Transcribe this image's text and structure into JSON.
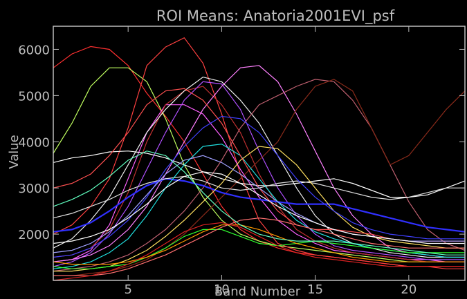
{
  "chart_data": {
    "type": "line",
    "title": "ROI Means: Anatoria2001EVI_psf",
    "xlabel": "Band Number",
    "ylabel": "Value",
    "xlim": [
      1,
      23
    ],
    "ylim": [
      1000,
      6500
    ],
    "xticks": [
      5,
      10,
      15,
      20
    ],
    "yticks": [
      2000,
      3000,
      4000,
      5000,
      6000
    ],
    "grid": false,
    "background": "#000000",
    "frame_color": "#bdbdbd",
    "x": [
      1,
      2,
      3,
      4,
      5,
      6,
      7,
      8,
      9,
      10,
      11,
      12,
      13,
      14,
      15,
      16,
      17,
      18,
      19,
      20,
      21,
      22,
      23
    ],
    "series": [
      {
        "color": "#ff3030",
        "values": [
          5600,
          5900,
          6060,
          6000,
          5650,
          5050,
          4550,
          4000,
          3300,
          2600,
          2100,
          1850,
          1700,
          1600,
          1550,
          1500,
          1450,
          1400,
          1350,
          1300,
          1300,
          1300,
          1300
        ]
      },
      {
        "color": "#c0ff60",
        "values": [
          3750,
          4400,
          5200,
          5600,
          5600,
          5300,
          4500,
          3500,
          2800,
          2300,
          2000,
          1850,
          1750,
          1700,
          1650,
          1600,
          1550,
          1500,
          1450,
          1400,
          1400,
          1400,
          1400
        ]
      },
      {
        "color": "#ff4040",
        "values": [
          2000,
          2200,
          2600,
          3200,
          4300,
          5650,
          6050,
          6250,
          5700,
          4600,
          3300,
          2300,
          1800,
          1650,
          1550,
          1500,
          1450,
          1400,
          1350,
          1300,
          1300,
          1250,
          1250
        ]
      },
      {
        "color": "#ff60ff",
        "values": [
          1400,
          1450,
          1650,
          2200,
          3200,
          4200,
          4800,
          4800,
          4600,
          4100,
          3400,
          2800,
          2300,
          2000,
          1800,
          1650,
          1600,
          1550,
          1500,
          1450,
          1450,
          1400,
          1400
        ]
      },
      {
        "color": "#c03030",
        "values": [
          1500,
          1550,
          1700,
          2100,
          2900,
          4000,
          4800,
          5100,
          5200,
          4800,
          4200,
          3300,
          2600,
          2100,
          1850,
          1700,
          1600,
          1550,
          1500,
          1450,
          1400,
          1400,
          1400
        ]
      },
      {
        "color": "#b050ff",
        "values": [
          1300,
          1400,
          1600,
          2000,
          2600,
          3400,
          4200,
          4900,
          5300,
          5250,
          4700,
          3800,
          3000,
          2400,
          2000,
          1750,
          1650,
          1600,
          1550,
          1500,
          1450,
          1450,
          1450
        ]
      },
      {
        "color": "#f0f0f0",
        "values": [
          1700,
          1900,
          2300,
          2800,
          3500,
          4200,
          4700,
          5100,
          5400,
          5300,
          4900,
          4400,
          3700,
          3000,
          2400,
          2000,
          1800,
          1700,
          1600,
          1550,
          1500,
          1500,
          1500
        ]
      },
      {
        "color": "#ff80ff",
        "values": [
          1400,
          1450,
          1550,
          1750,
          2100,
          2600,
          3300,
          4000,
          4700,
          5200,
          5600,
          5650,
          5300,
          4600,
          3800,
          3000,
          2400,
          2000,
          1700,
          1600,
          1550,
          1500,
          1500
        ]
      },
      {
        "color": "#c06070",
        "values": [
          1200,
          1250,
          1300,
          1400,
          1550,
          1800,
          2100,
          2500,
          3000,
          3600,
          4300,
          4800,
          5000,
          5200,
          5350,
          5300,
          4900,
          4300,
          3500,
          2700,
          2100,
          1800,
          1650
        ]
      },
      {
        "color": "#8a2a1a",
        "values": [
          1100,
          1100,
          1150,
          1200,
          1300,
          1450,
          1700,
          2000,
          2400,
          2800,
          3200,
          3600,
          4000,
          4700,
          5200,
          5350,
          5100,
          4300,
          3500,
          3700,
          4200,
          4700,
          5100
        ]
      },
      {
        "color": "#ffffff",
        "values": [
          3550,
          3650,
          3700,
          3780,
          3800,
          3750,
          3650,
          3500,
          3350,
          3200,
          3100,
          3050,
          3050,
          3100,
          3150,
          3200,
          3100,
          2950,
          2800,
          2800,
          2850,
          3000,
          3150
        ]
      },
      {
        "color": "#3030ff",
        "values": [
          2050,
          2100,
          2250,
          2500,
          2800,
          3050,
          3200,
          3150,
          3050,
          2900,
          2800,
          2750,
          2700,
          2650,
          2650,
          2650,
          2550,
          2450,
          2350,
          2250,
          2150,
          2100,
          2050
        ]
      },
      {
        "color": "#e0e0e0",
        "values": [
          2350,
          2450,
          2600,
          2750,
          2950,
          3100,
          3200,
          3250,
          3150,
          3000,
          2950,
          3000,
          3100,
          3150,
          3100,
          3000,
          2900,
          2800,
          2750,
          2800,
          2900,
          3000,
          3000
        ]
      },
      {
        "color": "#20e0e0",
        "values": [
          1250,
          1300,
          1400,
          1600,
          1900,
          2400,
          3000,
          3500,
          3900,
          3950,
          3700,
          3200,
          2700,
          2300,
          2050,
          1900,
          1800,
          1700,
          1650,
          1600,
          1550,
          1500,
          1500
        ]
      },
      {
        "color": "#ffe060",
        "values": [
          1200,
          1200,
          1250,
          1300,
          1450,
          1650,
          1950,
          2300,
          2700,
          3100,
          3600,
          3900,
          3850,
          3500,
          3000,
          2500,
          2150,
          1950,
          1850,
          1800,
          1750,
          1700,
          1700
        ]
      },
      {
        "color": "#4040ff",
        "values": [
          1500,
          1550,
          1700,
          1950,
          2300,
          2800,
          3400,
          3900,
          4300,
          4550,
          4500,
          4200,
          3700,
          3200,
          2800,
          2500,
          2250,
          2100,
          2000,
          1950,
          1900,
          1900,
          1900
        ]
      },
      {
        "color": "#30ff30",
        "values": [
          1300,
          1250,
          1250,
          1300,
          1350,
          1500,
          1700,
          1950,
          2100,
          2100,
          1950,
          1800,
          1750,
          1800,
          1850,
          1800,
          1750,
          1700,
          1650,
          1600,
          1600,
          1600,
          1600
        ]
      },
      {
        "color": "#ff5050",
        "values": [
          3000,
          3100,
          3300,
          3700,
          4200,
          4800,
          5100,
          5150,
          4900,
          4400,
          3700,
          3000,
          2500,
          2200,
          2100,
          2100,
          2050,
          2000,
          1900,
          1850,
          1850,
          1850,
          1850
        ]
      },
      {
        "color": "#ff9900",
        "values": [
          1400,
          1350,
          1350,
          1350,
          1400,
          1500,
          1650,
          1850,
          2050,
          2200,
          2200,
          2100,
          1950,
          1800,
          1700,
          1600,
          1500,
          1450,
          1400,
          1400,
          1400,
          1400,
          1400
        ]
      },
      {
        "color": "#a0a0ff",
        "values": [
          1600,
          1650,
          1800,
          2050,
          2400,
          2850,
          3300,
          3600,
          3700,
          3550,
          3300,
          3000,
          2700,
          2450,
          2250,
          2100,
          2000,
          1950,
          1900,
          1850,
          1850,
          1850,
          1850
        ]
      },
      {
        "color": "#ff7070",
        "values": [
          1100,
          1100,
          1100,
          1150,
          1250,
          1400,
          1550,
          1750,
          1950,
          2150,
          2300,
          2350,
          2300,
          2200,
          2100,
          2000,
          1900,
          1800,
          1750,
          1700,
          1700,
          1700,
          1700
        ]
      },
      {
        "color": "#dd2222",
        "values": [
          1000,
          1050,
          1100,
          1200,
          1350,
          1550,
          1800,
          2050,
          2200,
          2250,
          2150,
          1950,
          1750,
          1600,
          1500,
          1450,
          1400,
          1350,
          1300,
          1300,
          1300,
          1300,
          1300
        ]
      },
      {
        "color": "#60ffc0",
        "values": [
          2600,
          2750,
          2950,
          3250,
          3600,
          3800,
          3700,
          3350,
          2900,
          2500,
          2200,
          2000,
          1900,
          1850,
          1850,
          1850,
          1800,
          1750,
          1700,
          1650,
          1600,
          1550,
          1550
        ]
      },
      {
        "color": "#ffffff",
        "values": [
          1800,
          1850,
          1950,
          2100,
          2350,
          2650,
          3000,
          3250,
          3350,
          3300,
          3100,
          2850,
          2600,
          2400,
          2250,
          2100,
          2000,
          1950,
          1900,
          1850,
          1800,
          1800,
          1800
        ]
      }
    ]
  }
}
